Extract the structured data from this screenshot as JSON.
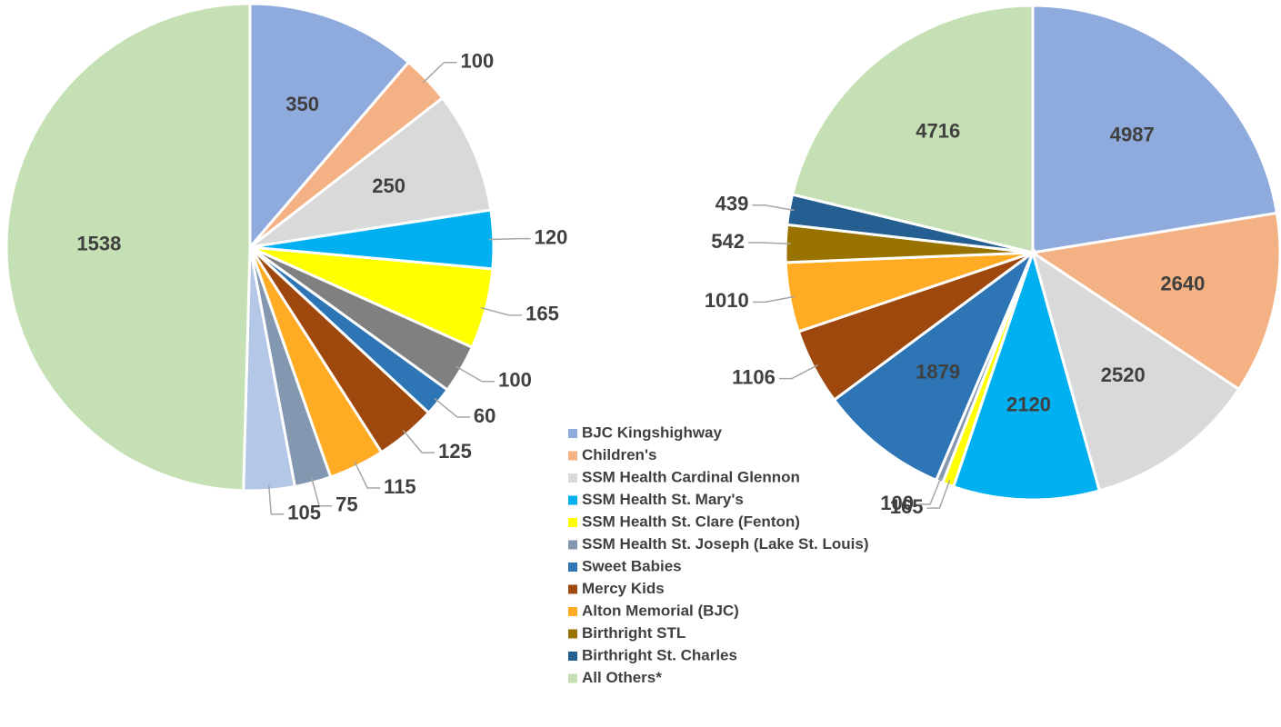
{
  "chart_data": [
    {
      "type": "pie",
      "values": [
        350,
        100,
        250,
        120,
        165,
        100,
        60,
        125,
        115,
        75,
        105,
        1538
      ],
      "colors": [
        "#8faadc",
        "#f4b183",
        "#d9d9d9",
        "#00b0f0",
        "#ffff00",
        "#808080",
        "#2e75b6",
        "#9e480e",
        "#ffab24",
        "#8497b0",
        "#b4c7e7",
        "#c5e0b4"
      ]
    },
    {
      "type": "pie",
      "categories": [
        "BJC Kingshighway",
        "Children's",
        "SSM Health Cardinal Glennon",
        "SSM Health St. Mary's",
        "SSM Health St. Clare (Fenton)",
        "SSM Health St. Joseph (Lake St. Louis)",
        "Sweet Babies",
        "Mercy Kids",
        "Alton Memorial (BJC)",
        "Birthright STL",
        "Birthright St. Charles",
        "All Others*"
      ],
      "values": [
        4987,
        2640,
        2520,
        2120,
        165,
        100,
        1879,
        1106,
        1010,
        542,
        439,
        4716
      ],
      "colors": [
        "#8faadc",
        "#f4b183",
        "#d9d9d9",
        "#00b0f0",
        "#ffff00",
        "#8497b0",
        "#2e75b6",
        "#9e480e",
        "#ffab24",
        "#997300",
        "#255e91",
        "#c5e0b4"
      ]
    }
  ]
}
